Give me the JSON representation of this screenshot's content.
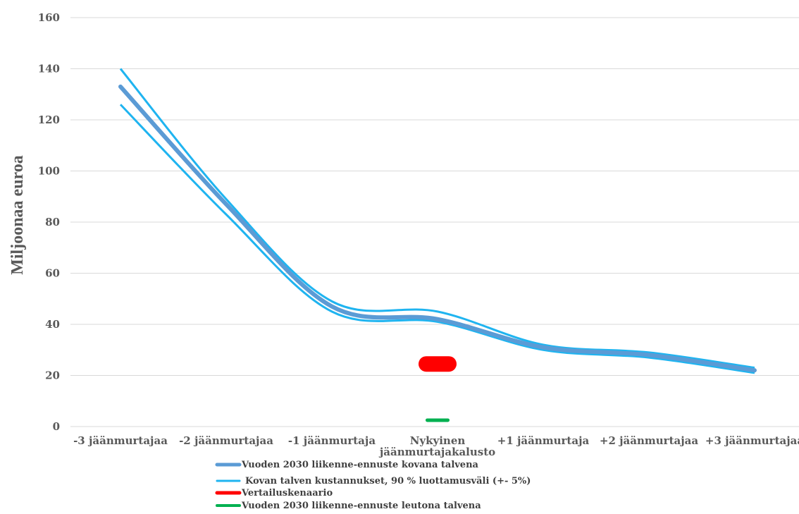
{
  "chart_data": {
    "type": "line",
    "ylabel": "Miljoonaa euroa",
    "ylim": [
      0,
      160
    ],
    "yticks": [
      0,
      20,
      40,
      60,
      80,
      100,
      120,
      140,
      160
    ],
    "grid": true,
    "categories": [
      [
        "-3 jäänmurtajaa"
      ],
      [
        "-2 jäänmurtajaa"
      ],
      [
        "-1 jäänmurtaja"
      ],
      [
        "Nykyinen",
        "jäänmurtajakalusto"
      ],
      [
        "+1 jäänmurtaja"
      ],
      [
        "+2 jäänmurtajaa"
      ],
      [
        "+3 jäänmurtajaa"
      ]
    ],
    "series": [
      {
        "name": "Vuoden 2030 liikenne-ennuste kovana talvena",
        "kind": "line",
        "color": "#5b9bd5",
        "values": [
          133,
          87,
          47,
          42,
          31,
          28,
          22
        ]
      },
      {
        "name": "Kovan talven kustannukset, 90 % luottamusväli (+- 5%)",
        "kind": "band",
        "color": "#1fb4f0",
        "upper": [
          140,
          89,
          49,
          45,
          32,
          29,
          23
        ],
        "lower": [
          126,
          83,
          45,
          41,
          30,
          27,
          21
        ]
      },
      {
        "name": "Vertailuskenaario",
        "kind": "marker",
        "color": "#ff0000",
        "category_index": 3,
        "value": 24.5
      },
      {
        "name": "Vuoden 2030 liikenne-ennuste leutona talvena",
        "kind": "marker",
        "color": "#00b050",
        "category_index": 3,
        "value": 2.5
      }
    ],
    "legend_position": "bottom-left"
  }
}
